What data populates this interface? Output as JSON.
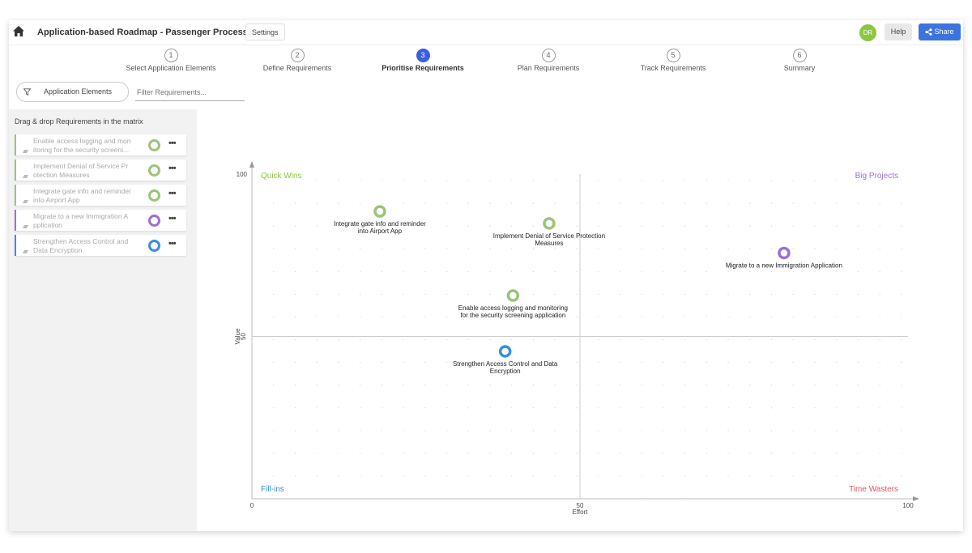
{
  "header": {
    "title": "Application-based Roadmap - Passenger Processing",
    "settings_label": "Settings",
    "avatar_initials": "DR",
    "help_label": "Help",
    "share_label": "Share"
  },
  "steps": [
    {
      "number": "1",
      "label": "Select Application Elements",
      "active": false
    },
    {
      "number": "2",
      "label": "Define Requirements",
      "active": false
    },
    {
      "number": "3",
      "label": "Prioritise Requirements",
      "active": true
    },
    {
      "number": "4",
      "label": "Plan Requirements",
      "active": false
    },
    {
      "number": "5",
      "label": "Track Requirements",
      "active": false
    },
    {
      "number": "6",
      "label": "Summary",
      "active": false
    }
  ],
  "filter": {
    "elements_label": "Application Elements",
    "search_placeholder": "Filter Requirements..."
  },
  "sidebar": {
    "hint": "Drag & drop Requirements in the matrix",
    "items": [
      {
        "text": "Enable access logging and mon itoring for the security screeni...",
        "color": "#9bc47a"
      },
      {
        "text": "Implement Denial of Service Pr otection Measures",
        "color": "#9bc47a"
      },
      {
        "text": "Integrate gate info and reminder into Airport App",
        "color": "#9bc47a"
      },
      {
        "text": "Migrate to a new Immigration A pplication",
        "color": "#9b6fd6"
      },
      {
        "text": "Strengthen Access Control and Data Encryption",
        "color": "#3b8ee0"
      }
    ]
  },
  "chart_data": {
    "type": "scatter",
    "xlabel": "Effort",
    "ylabel": "Value",
    "xlim": [
      0,
      100
    ],
    "ylim": [
      0,
      100
    ],
    "x_ticks": [
      "0",
      "50",
      "100"
    ],
    "y_ticks": [
      "50",
      "100"
    ],
    "quadrants": {
      "top_left": {
        "label": "Quick Wins",
        "color": "#8dc63f"
      },
      "top_right": {
        "label": "Big Projects",
        "color": "#9b6fd6"
      },
      "bottom_left": {
        "label": "Fill-ins",
        "color": "#3b8ee0"
      },
      "bottom_right": {
        "label": "Time Wasters",
        "color": "#e05563"
      }
    },
    "points": [
      {
        "label": "Integrate gate info and reminder into Airport App",
        "lines": [
          "Integrate gate info and reminder",
          "into Airport App"
        ],
        "x": 19.5,
        "y": 88.5,
        "color": "#9bc47a"
      },
      {
        "label": "Implement Denial of Service Protection Measures",
        "lines": [
          "Implement Denial of Service Protection",
          "Measures"
        ],
        "x": 45.3,
        "y": 84.8,
        "color": "#9bc47a"
      },
      {
        "label": "Migrate to a new Immigration Application",
        "lines": [
          "Migrate to a new Immigration Application"
        ],
        "x": 81.1,
        "y": 75.7,
        "color": "#9b6fd6"
      },
      {
        "label": "Enable access logging and monitoring for the security screening application",
        "lines": [
          "Enable access logging and monitoring",
          "for the security screening application"
        ],
        "x": 39.8,
        "y": 62.6,
        "color": "#9bc47a"
      },
      {
        "label": "Strengthen Access Control and Data Encryption",
        "lines": [
          "Strengthen Access Control and Data",
          "Encryption"
        ],
        "x": 38.6,
        "y": 45.4,
        "color": "#3b8ee0"
      }
    ]
  }
}
